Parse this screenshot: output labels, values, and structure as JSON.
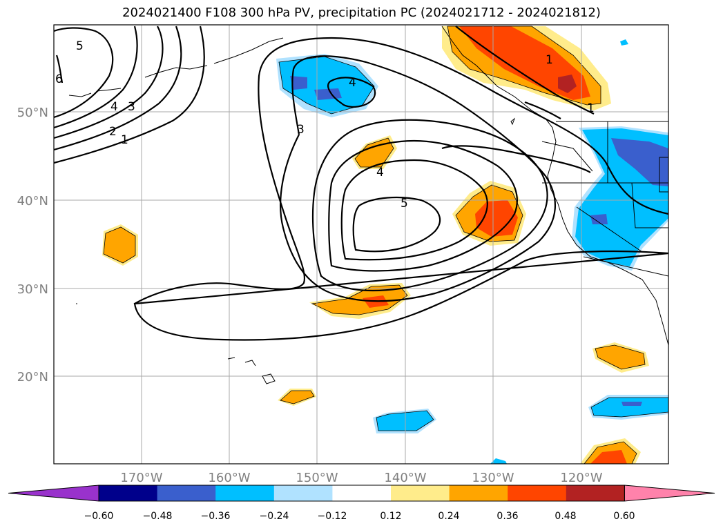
{
  "title": "2024021400 F108 300 hPa PV, precipitation PC (2024021712 - 2024021812)",
  "map": {
    "lon_ticks": [
      "170°W",
      "160°W",
      "150°W",
      "140°W",
      "130°W",
      "120°W"
    ],
    "lat_ticks": [
      "50°N",
      "40°N",
      "30°N",
      "20°N"
    ],
    "contour_labels": [
      "5",
      "6",
      "4",
      "3",
      "2",
      "1",
      "4",
      "3",
      "4",
      "5",
      "1",
      "1"
    ]
  },
  "colorbar": {
    "colors": [
      "#9932CC",
      "#00008B",
      "#3A5FCD",
      "#00BFFF",
      "#B0E2FF",
      "#FFFFFF",
      "#FFEC8B",
      "#FFA500",
      "#FF4500",
      "#B22222",
      "#FF82AB"
    ],
    "ticks": [
      "−0.60",
      "−0.48",
      "−0.36",
      "−0.24",
      "−0.12",
      "0.12",
      "0.24",
      "0.36",
      "0.48",
      "0.60"
    ]
  }
}
